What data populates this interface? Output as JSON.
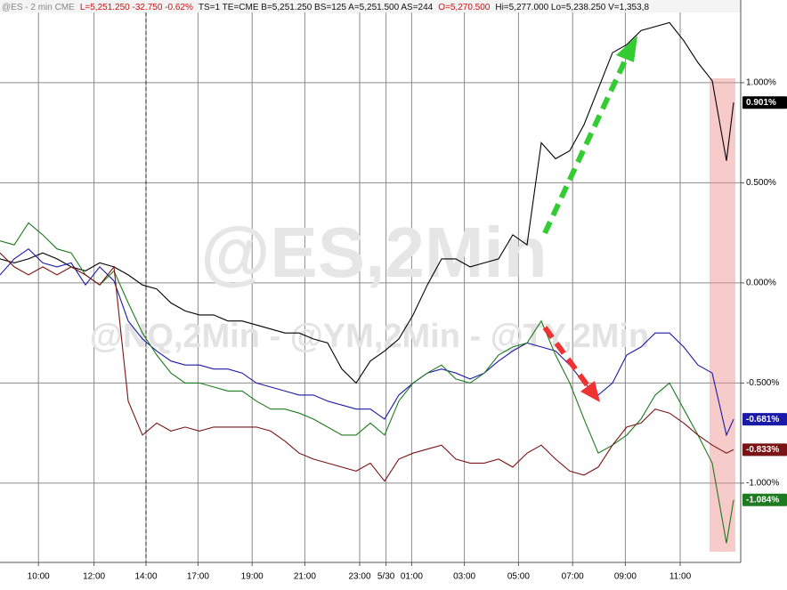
{
  "chart_data": {
    "type": "line",
    "header": [
      {
        "text": "@ES - 2 min  CME",
        "color": "#888888"
      },
      {
        "text": "L=5,251.250  -32.750  -0.62%",
        "color": "#cc1111"
      },
      {
        "text": "TS=1   TE=CME  B=5,251.250   BS=125   A=5,251.500   AS=244",
        "color": "#111111"
      },
      {
        "text": "O=5,270.500",
        "color": "#cc1111"
      },
      {
        "text": "Hi=5,277.000   Lo=5,238.250   V=1,353,8",
        "color": "#111111"
      }
    ],
    "watermark_separator": " - ",
    "x": [
      0,
      1,
      2,
      3,
      4,
      5,
      6,
      7,
      8,
      9,
      10,
      11,
      12,
      13,
      14,
      15,
      16,
      17,
      18,
      19,
      20,
      21,
      22,
      23,
      24,
      25,
      26,
      27,
      28,
      29,
      30,
      31,
      32,
      33,
      34,
      35,
      36,
      37,
      38,
      39,
      40,
      41,
      42,
      43,
      44,
      45,
      46,
      47,
      48,
      49,
      50,
      51,
      51.5
    ],
    "xlim": [
      0,
      52
    ],
    "xticks": [
      {
        "value": 2.7,
        "label": "10:00"
      },
      {
        "value": 6.6,
        "label": "12:00"
      },
      {
        "value": 10.25,
        "label": "14:00"
      },
      {
        "value": 13.9,
        "label": "17:00"
      },
      {
        "value": 17.7,
        "label": "19:00"
      },
      {
        "value": 21.4,
        "label": "21:00"
      },
      {
        "value": 25.25,
        "label": "23:00"
      },
      {
        "value": 27.1,
        "label": "5/30"
      },
      {
        "value": 28.9,
        "label": "01:00"
      },
      {
        "value": 32.6,
        "label": "03:00"
      },
      {
        "value": 36.4,
        "label": "05:00"
      },
      {
        "value": 40.2,
        "label": "07:00"
      },
      {
        "value": 43.9,
        "label": "09:00"
      },
      {
        "value": 47.75,
        "label": "11:00"
      }
    ],
    "ylim": [
      -1.396,
      1.413
    ],
    "yticks": [
      {
        "value": 1,
        "label": "1.000%"
      },
      {
        "value": 0.5,
        "label": "0.500%"
      },
      {
        "value": 0,
        "label": "0.000%"
      },
      {
        "value": -0.5,
        "label": "-0.500%"
      },
      {
        "value": -1,
        "label": "-1.000%"
      }
    ],
    "grid": true,
    "series": [
      {
        "name": "@ES,2Min",
        "color": "#000000",
        "values": [
          0.12,
          0.1,
          0.12,
          0.15,
          0.12,
          0.08,
          0.06,
          0.1,
          0.08,
          0.04,
          -0.01,
          -0.03,
          -0.1,
          -0.14,
          -0.16,
          -0.16,
          -0.19,
          -0.19,
          -0.21,
          -0.23,
          -0.25,
          -0.25,
          -0.28,
          -0.3,
          -0.43,
          -0.5,
          -0.39,
          -0.34,
          -0.28,
          -0.16,
          -0.01,
          0.12,
          0.12,
          0.08,
          0.1,
          0.12,
          0.24,
          0.19,
          0.7,
          0.62,
          0.66,
          0.79,
          0.97,
          1.15,
          1.19,
          1.26,
          1.28,
          1.3,
          1.21,
          1.1,
          1.01,
          0.61,
          0.901
        ],
        "value_labels": [
          null,
          null,
          null,
          null,
          null,
          null,
          null,
          null,
          null,
          null,
          null,
          null,
          null,
          null,
          null,
          null,
          null,
          null,
          null,
          null,
          null,
          null,
          null,
          null,
          null,
          null,
          null,
          null,
          null,
          null,
          null,
          null,
          null,
          null,
          null,
          null,
          null,
          null,
          null,
          null,
          null,
          null,
          null,
          null,
          null,
          null,
          null,
          null,
          null,
          null,
          null,
          null,
          "0.901%"
        ]
      },
      {
        "name": "@NQ,2Min",
        "color": "#1a1aa8",
        "values": [
          0.04,
          0.12,
          0.17,
          0.1,
          0.08,
          0.1,
          -0.01,
          0.08,
          0.01,
          -0.19,
          -0.28,
          -0.34,
          -0.39,
          -0.41,
          -0.41,
          -0.43,
          -0.43,
          -0.45,
          -0.5,
          -0.52,
          -0.54,
          -0.56,
          -0.56,
          -0.59,
          -0.61,
          -0.63,
          -0.63,
          -0.68,
          -0.56,
          -0.5,
          -0.45,
          -0.43,
          -0.45,
          -0.48,
          -0.45,
          -0.39,
          -0.34,
          -0.3,
          -0.32,
          -0.34,
          -0.41,
          -0.5,
          -0.56,
          -0.5,
          -0.36,
          -0.32,
          -0.25,
          -0.25,
          -0.32,
          -0.41,
          -0.45,
          -0.76,
          -0.681
        ],
        "value_labels": [
          null,
          null,
          null,
          null,
          null,
          null,
          null,
          null,
          null,
          null,
          null,
          null,
          null,
          null,
          null,
          null,
          null,
          null,
          null,
          null,
          null,
          null,
          null,
          null,
          null,
          null,
          null,
          null,
          null,
          null,
          null,
          null,
          null,
          null,
          null,
          null,
          null,
          null,
          null,
          null,
          null,
          null,
          null,
          null,
          null,
          null,
          null,
          null,
          null,
          null,
          null,
          null,
          "-0.681%"
        ]
      },
      {
        "name": "@YM,2Min",
        "color": "#1e7a1e",
        "values": [
          0.21,
          0.19,
          0.3,
          0.24,
          0.17,
          0.15,
          0.04,
          -0.01,
          0.06,
          -0.1,
          -0.25,
          -0.36,
          -0.45,
          -0.5,
          -0.5,
          -0.52,
          -0.54,
          -0.54,
          -0.59,
          -0.63,
          -0.63,
          -0.65,
          -0.68,
          -0.72,
          -0.76,
          -0.76,
          -0.7,
          -0.76,
          -0.59,
          -0.5,
          -0.45,
          -0.41,
          -0.48,
          -0.5,
          -0.45,
          -0.36,
          -0.32,
          -0.3,
          -0.19,
          -0.36,
          -0.5,
          -0.68,
          -0.85,
          -0.81,
          -0.76,
          -0.68,
          -0.56,
          -0.5,
          -0.63,
          -0.76,
          -0.9,
          -1.3,
          -1.084
        ],
        "value_labels": [
          null,
          null,
          null,
          null,
          null,
          null,
          null,
          null,
          null,
          null,
          null,
          null,
          null,
          null,
          null,
          null,
          null,
          null,
          null,
          null,
          null,
          null,
          null,
          null,
          null,
          null,
          null,
          null,
          null,
          null,
          null,
          null,
          null,
          null,
          null,
          null,
          null,
          null,
          null,
          null,
          null,
          null,
          null,
          null,
          null,
          null,
          null,
          null,
          null,
          null,
          null,
          null,
          "-1.084%"
        ]
      },
      {
        "name": "@TY,2Min",
        "color": "#7a1414",
        "values": [
          0.15,
          0.08,
          0.04,
          0.08,
          0.04,
          0.08,
          0.04,
          -0.01,
          0.08,
          -0.59,
          -0.76,
          -0.7,
          -0.74,
          -0.72,
          -0.74,
          -0.72,
          -0.72,
          -0.72,
          -0.72,
          -0.74,
          -0.79,
          -0.85,
          -0.88,
          -0.9,
          -0.92,
          -0.94,
          -0.9,
          -0.99,
          -0.88,
          -0.85,
          -0.83,
          -0.81,
          -0.88,
          -0.9,
          -0.9,
          -0.88,
          -0.92,
          -0.85,
          -0.81,
          -0.88,
          -0.94,
          -0.96,
          -0.92,
          -0.81,
          -0.72,
          -0.7,
          -0.63,
          -0.65,
          -0.7,
          -0.76,
          -0.81,
          -0.85,
          -0.833
        ],
        "value_labels": [
          null,
          null,
          null,
          null,
          null,
          null,
          null,
          null,
          null,
          null,
          null,
          null,
          null,
          null,
          null,
          null,
          null,
          null,
          null,
          null,
          null,
          null,
          null,
          null,
          null,
          null,
          null,
          null,
          null,
          null,
          null,
          null,
          null,
          null,
          null,
          null,
          null,
          null,
          null,
          null,
          null,
          null,
          null,
          null,
          null,
          null,
          null,
          null,
          null,
          null,
          null,
          null,
          "-0.833%"
        ]
      }
    ]
  }
}
